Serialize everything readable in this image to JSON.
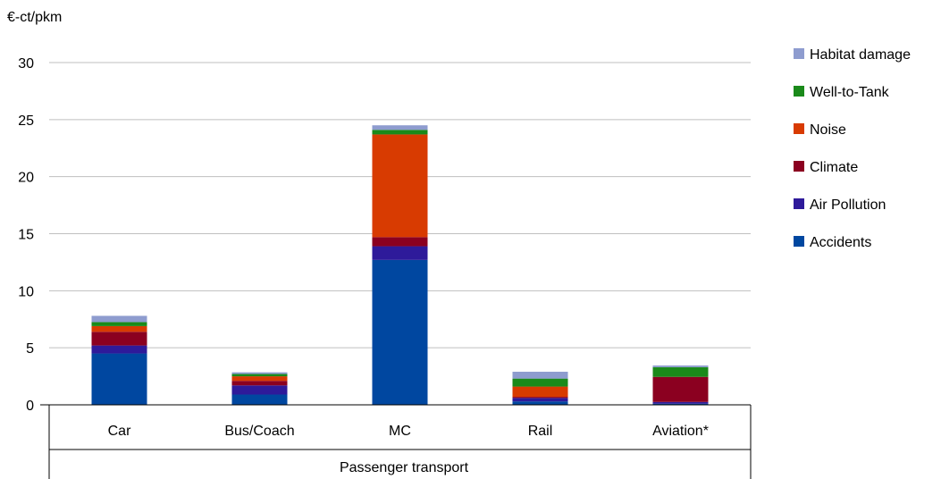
{
  "chart_data": {
    "type": "bar",
    "stacked": true,
    "ylabel": "€-ct/pkm",
    "ylim": [
      0,
      30
    ],
    "yticks": [
      0,
      5,
      10,
      15,
      20,
      25,
      30
    ],
    "grid": true,
    "legend_position": "right",
    "categories": [
      "Car",
      "Bus/Coach",
      "MC",
      "Rail",
      "Aviation*"
    ],
    "group_label": "Passenger transport",
    "series": [
      {
        "name": "Accidents",
        "color": "#0047A0",
        "values": [
          4.5,
          0.9,
          12.7,
          0.3,
          0.1
        ]
      },
      {
        "name": "Air Pollution",
        "color": "#2E1A9A",
        "values": [
          0.7,
          0.8,
          1.2,
          0.3,
          0.15
        ]
      },
      {
        "name": "Climate",
        "color": "#8B0020",
        "values": [
          1.2,
          0.4,
          0.8,
          0.1,
          2.2
        ]
      },
      {
        "name": "Noise",
        "color": "#D83B01",
        "values": [
          0.5,
          0.4,
          9.0,
          0.9,
          0.0
        ]
      },
      {
        "name": "Well-to-Tank",
        "color": "#1A8A1A",
        "values": [
          0.35,
          0.2,
          0.4,
          0.7,
          0.85
        ]
      },
      {
        "name": "Habitat damage",
        "color": "#8E9CCF",
        "values": [
          0.55,
          0.15,
          0.4,
          0.6,
          0.15
        ]
      }
    ]
  }
}
